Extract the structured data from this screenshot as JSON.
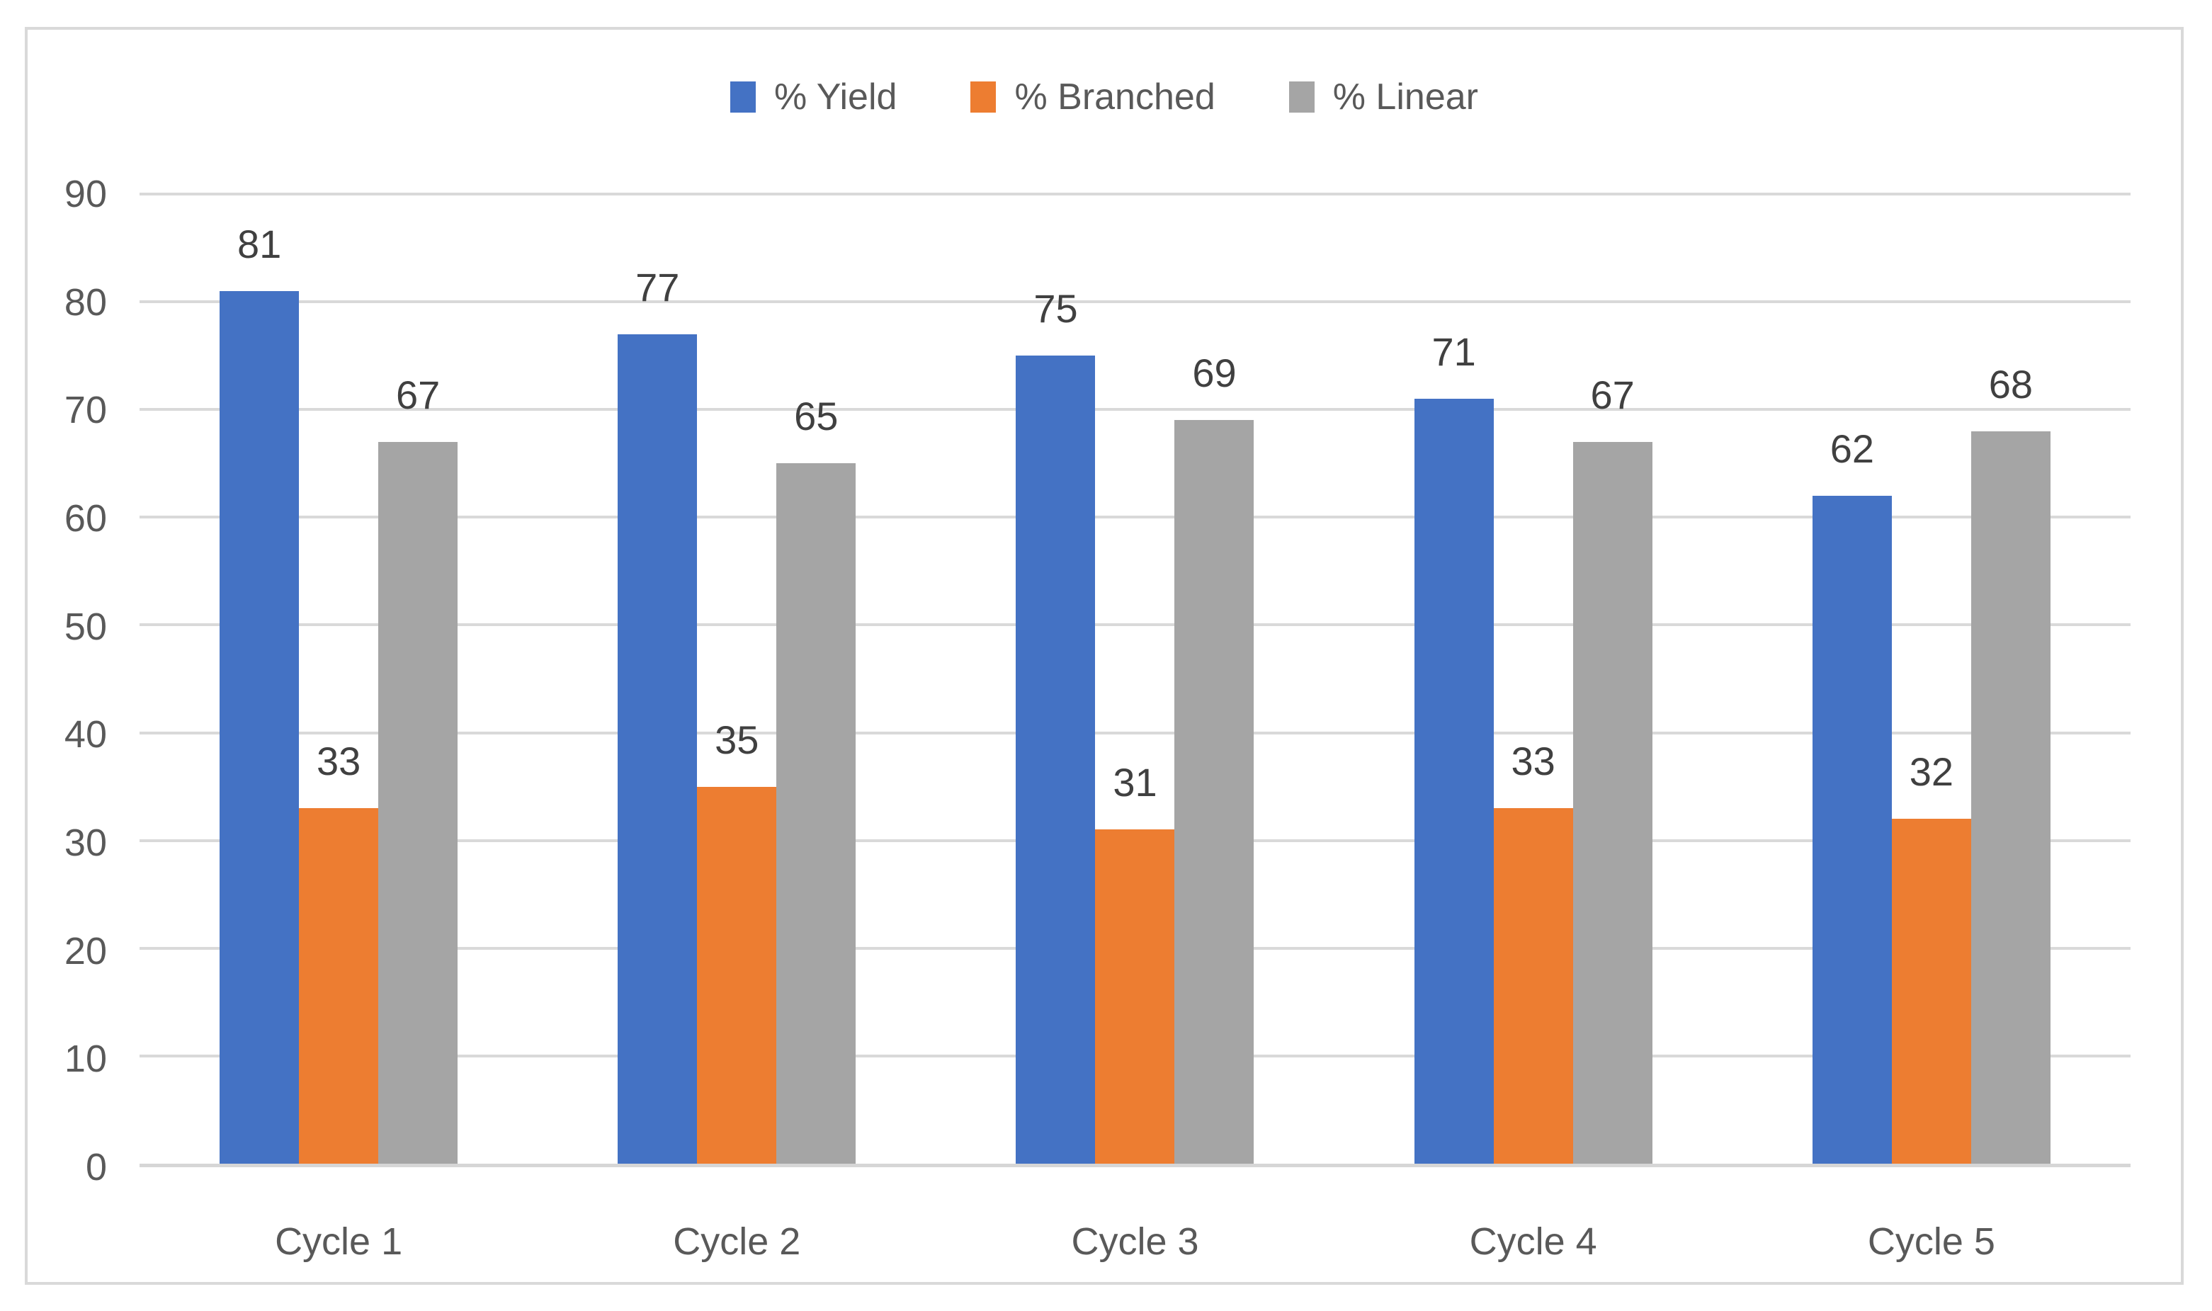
{
  "chart_data": {
    "type": "bar",
    "title": "",
    "categories": [
      "Cycle 1",
      "Cycle 2",
      "Cycle 3",
      "Cycle 4",
      "Cycle 5"
    ],
    "series": [
      {
        "name": "% Yield",
        "color": "#4472C4",
        "values": [
          81,
          77,
          75,
          71,
          62
        ]
      },
      {
        "name": "% Branched",
        "color": "#ED7D31",
        "values": [
          33,
          35,
          31,
          33,
          32
        ]
      },
      {
        "name": "% Linear",
        "color": "#A5A5A5",
        "values": [
          67,
          65,
          69,
          67,
          68
        ]
      }
    ],
    "xlabel": "",
    "ylabel": "",
    "ylim": [
      0,
      90
    ],
    "yticks": [
      0,
      10,
      20,
      30,
      40,
      50,
      60,
      70,
      80,
      90
    ],
    "grid": true,
    "legend_position": "top",
    "data_labels": true
  },
  "colors": {
    "gridline": "#D9D9D9",
    "frame_border": "#D9D9D9",
    "axis_text": "#595959",
    "data_label_text": "#404040",
    "background": "#FFFFFF"
  }
}
